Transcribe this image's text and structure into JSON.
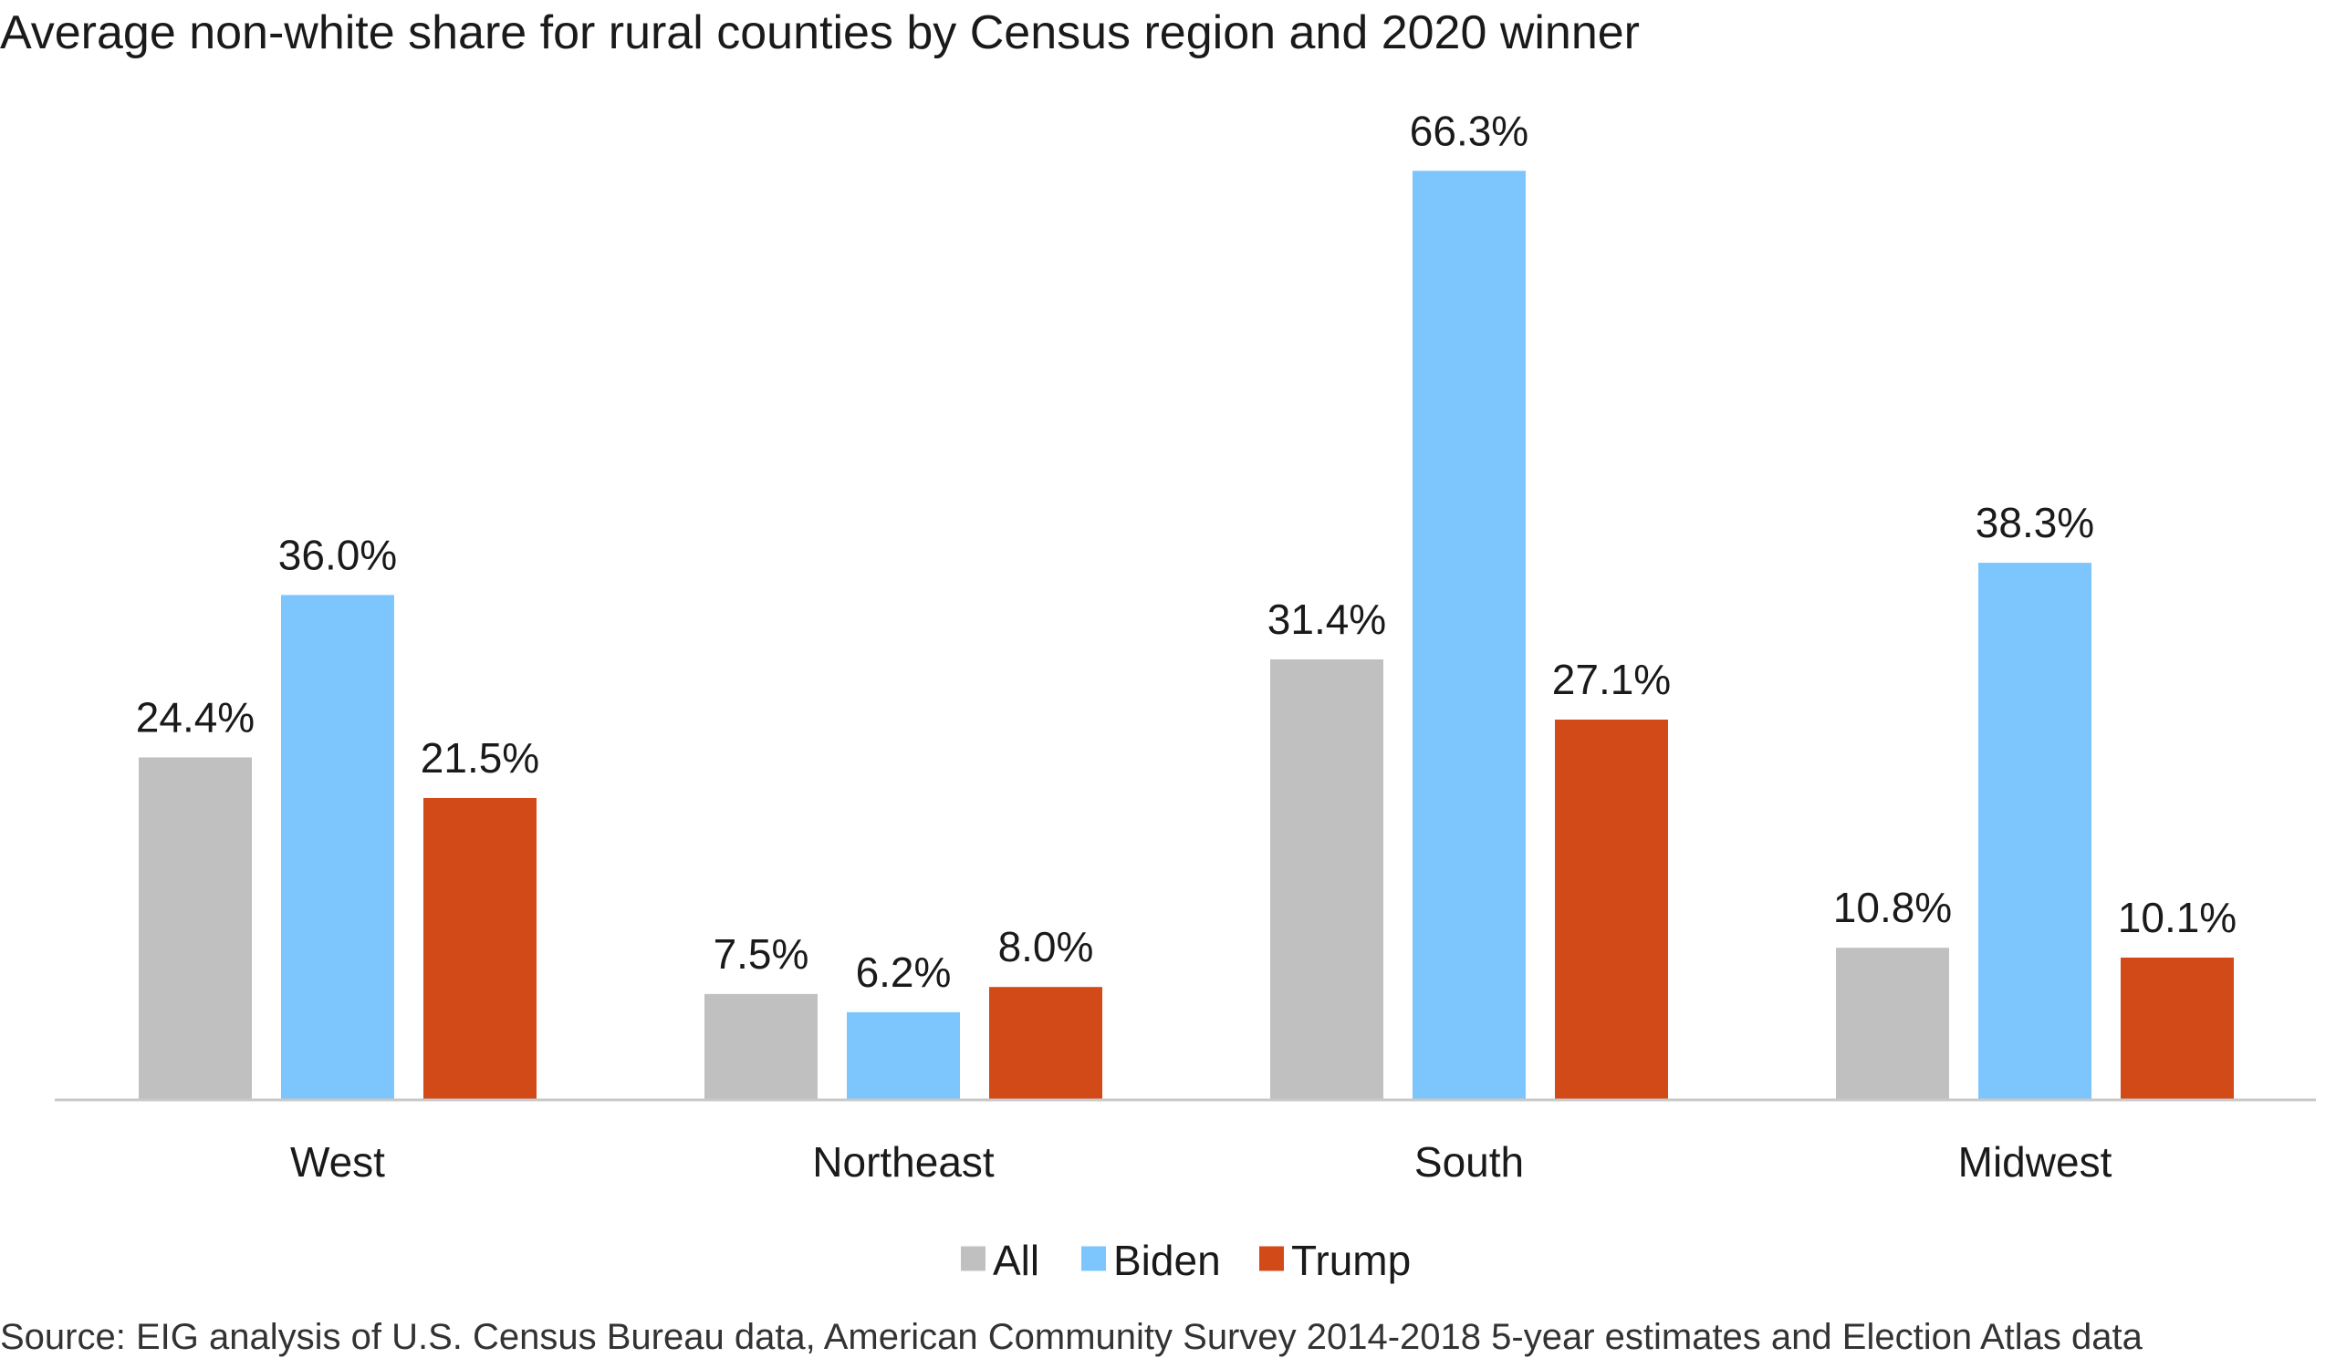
{
  "chart_data": {
    "type": "bar",
    "title": "Average non-white share for rural counties by Census region and 2020 winner",
    "categories": [
      "West",
      "Northeast",
      "South",
      "Midwest"
    ],
    "series": [
      {
        "name": "All",
        "values": [
          24.4,
          7.5,
          31.4,
          10.8
        ],
        "labels": [
          "24.4%",
          "7.5%",
          "31.4%",
          "10.8%"
        ],
        "color": "#c0c0c0"
      },
      {
        "name": "Biden",
        "values": [
          36.0,
          6.2,
          66.3,
          38.3
        ],
        "labels": [
          "36.0%",
          "6.2%",
          "66.3%",
          "38.3%"
        ],
        "color": "#7cc6fd"
      },
      {
        "name": "Trump",
        "values": [
          21.5,
          8.0,
          27.1,
          10.1
        ],
        "labels": [
          "21.5%",
          "8.0%",
          "27.1%",
          "10.1%"
        ],
        "color": "#d34a19"
      }
    ],
    "xlabel": "",
    "ylabel": "",
    "ylim": [
      0,
      70
    ],
    "unit": "%",
    "grid": false,
    "legend_position": "bottom-center",
    "axis_color": "#c8c8c8"
  },
  "source": "Source: EIG analysis of U.S. Census Bureau data, American Community Survey 2014-2018 5-year estimates and Election Atlas data"
}
